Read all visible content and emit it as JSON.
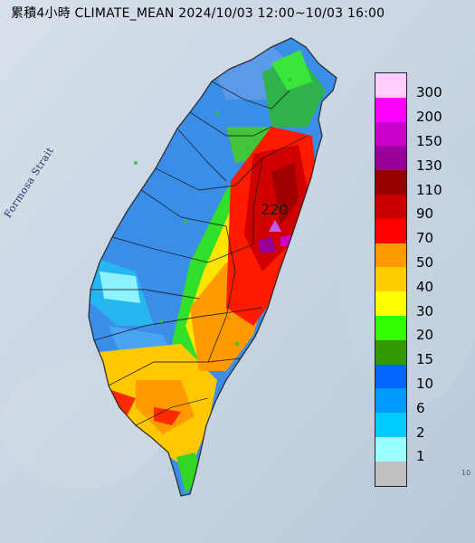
{
  "title": "累積4小時 CLIMATE_MEAN 2024/10/03 12:00~10/03 16:00",
  "sea_label": "Formosa Strait",
  "max_value_label": "220",
  "edge_fragment": "10",
  "legend": {
    "entries": [
      {
        "label": "300",
        "color": "#ffccff"
      },
      {
        "label": "200",
        "color": "#ff00ff"
      },
      {
        "label": "150",
        "color": "#cc00cc"
      },
      {
        "label": "130",
        "color": "#990099"
      },
      {
        "label": "110",
        "color": "#990000"
      },
      {
        "label": "90",
        "color": "#cc0000"
      },
      {
        "label": "70",
        "color": "#ff0000"
      },
      {
        "label": "50",
        "color": "#ff9900"
      },
      {
        "label": "40",
        "color": "#ffcc00"
      },
      {
        "label": "30",
        "color": "#ffff00"
      },
      {
        "label": "20",
        "color": "#33ff00"
      },
      {
        "label": "15",
        "color": "#339900"
      },
      {
        "label": "10",
        "color": "#0066ff"
      },
      {
        "label": "6",
        "color": "#0099ff"
      },
      {
        "label": "2",
        "color": "#00ccff"
      },
      {
        "label": "1",
        "color": "#99ffff"
      },
      {
        "label": "",
        "color": "#c0c0c0"
      }
    ]
  },
  "colors": {
    "sea": "#cfd9e4",
    "max_marker": "#c658ff",
    "county_border": "#1a1a1a"
  }
}
